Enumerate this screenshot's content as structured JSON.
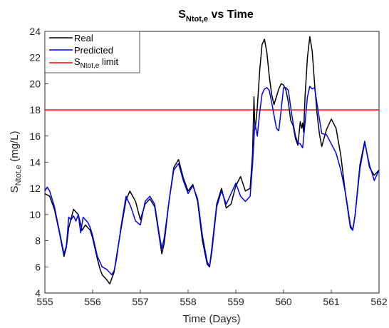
{
  "chart_data": {
    "type": "line",
    "title": {
      "base": "S",
      "sub": "Ntot,e",
      "rest": " vs Time"
    },
    "xlabel": "Time (Days)",
    "ylabel": {
      "base": "S",
      "sub": "Ntot,e",
      "rest": "  (mg/L)"
    },
    "xlim": [
      555,
      562
    ],
    "ylim": [
      4,
      24
    ],
    "xticks": [
      555,
      556,
      557,
      558,
      559,
      560,
      561,
      562
    ],
    "yticks": [
      4,
      6,
      8,
      10,
      12,
      14,
      16,
      18,
      20,
      22,
      24
    ],
    "grid": false,
    "legend_position": "top-left",
    "series": [
      {
        "name": "Real",
        "color": "#000000",
        "x": [
          555.0,
          555.1,
          555.2,
          555.3,
          555.4,
          555.45,
          555.5,
          555.6,
          555.7,
          555.78,
          555.85,
          555.9,
          555.95,
          556.0,
          556.05,
          556.1,
          556.15,
          556.2,
          556.3,
          556.36,
          556.45,
          556.5,
          556.6,
          556.7,
          556.78,
          556.9,
          557.0,
          557.1,
          557.2,
          557.3,
          557.4,
          557.45,
          557.5,
          557.6,
          557.7,
          557.8,
          557.9,
          558.0,
          558.1,
          558.2,
          558.3,
          558.4,
          558.45,
          558.5,
          558.6,
          558.7,
          558.8,
          558.9,
          559.0,
          559.1,
          559.2,
          559.3,
          559.35,
          559.38,
          559.4,
          559.42,
          559.45,
          559.5,
          559.55,
          559.6,
          559.65,
          559.7,
          559.75,
          559.8,
          559.85,
          559.9,
          559.95,
          560.0,
          560.05,
          560.1,
          560.15,
          560.2,
          560.25,
          560.3,
          560.35,
          560.38,
          560.4,
          560.42,
          560.45,
          560.5,
          560.55,
          560.6,
          560.65,
          560.7,
          560.75,
          560.8,
          560.9,
          561.0,
          561.1,
          561.2,
          561.3,
          561.4,
          561.45,
          561.5,
          561.6,
          561.7,
          561.8,
          561.9,
          562.0
        ],
        "values": [
          11.6,
          11.4,
          10.4,
          8.7,
          6.8,
          7.5,
          9.0,
          10.4,
          10.0,
          8.8,
          9.2,
          9.0,
          8.8,
          8.2,
          7.4,
          6.6,
          5.9,
          5.4,
          5.0,
          4.7,
          5.6,
          6.8,
          9.0,
          11.1,
          11.8,
          11.0,
          9.6,
          10.8,
          11.2,
          10.6,
          8.2,
          7.0,
          7.8,
          11.0,
          13.6,
          14.2,
          12.8,
          11.8,
          12.3,
          11.0,
          8.0,
          6.2,
          6.0,
          7.5,
          10.8,
          12.0,
          10.5,
          10.8,
          12.2,
          12.9,
          11.8,
          12.0,
          14.6,
          19.0,
          16.5,
          17.0,
          18.2,
          21.0,
          23.0,
          23.4,
          22.4,
          20.6,
          19.2,
          18.4,
          19.0,
          19.6,
          20.0,
          19.9,
          19.5,
          18.6,
          17.2,
          16.8,
          15.8,
          15.3,
          17.1,
          16.6,
          17.0,
          16.3,
          19.0,
          22.0,
          23.6,
          22.5,
          20.0,
          17.8,
          16.2,
          15.2,
          16.5,
          17.3,
          16.6,
          14.5,
          11.5,
          9.0,
          8.8,
          10.0,
          13.8,
          15.6,
          13.6,
          13.0,
          13.4
        ]
      },
      {
        "name": "Predicted",
        "color": "#0000ff",
        "x": [
          555.0,
          555.05,
          555.1,
          555.2,
          555.3,
          555.4,
          555.45,
          555.5,
          555.55,
          555.6,
          555.65,
          555.7,
          555.75,
          555.8,
          555.85,
          555.9,
          555.95,
          556.0,
          556.05,
          556.1,
          556.2,
          556.3,
          556.4,
          556.45,
          556.5,
          556.6,
          556.7,
          556.8,
          556.9,
          557.0,
          557.1,
          557.2,
          557.3,
          557.4,
          557.45,
          557.5,
          557.6,
          557.7,
          557.8,
          557.9,
          558.0,
          558.1,
          558.2,
          558.3,
          558.4,
          558.45,
          558.5,
          558.6,
          558.7,
          558.8,
          558.9,
          559.0,
          559.1,
          559.2,
          559.3,
          559.35,
          559.4,
          559.45,
          559.5,
          559.55,
          559.6,
          559.65,
          559.7,
          559.75,
          559.8,
          559.85,
          559.9,
          559.95,
          560.0,
          560.05,
          560.1,
          560.15,
          560.2,
          560.25,
          560.3,
          560.35,
          560.4,
          560.45,
          560.5,
          560.55,
          560.6,
          560.65,
          560.7,
          560.8,
          560.9,
          561.0,
          561.1,
          561.2,
          561.3,
          561.4,
          561.45,
          561.5,
          561.6,
          561.7,
          561.8,
          561.9,
          562.0
        ],
        "values": [
          11.8,
          12.1,
          11.8,
          10.6,
          8.8,
          7.0,
          7.6,
          9.8,
          9.6,
          9.9,
          9.5,
          10.0,
          8.6,
          9.8,
          9.6,
          9.4,
          9.0,
          8.4,
          7.6,
          6.8,
          6.0,
          5.8,
          5.4,
          5.7,
          6.6,
          9.2,
          11.4,
          10.6,
          9.5,
          9.2,
          11.0,
          11.4,
          10.8,
          8.4,
          7.4,
          8.2,
          11.0,
          13.4,
          13.9,
          12.6,
          11.6,
          12.2,
          11.2,
          8.4,
          6.4,
          6.0,
          7.2,
          10.6,
          11.8,
          10.8,
          11.6,
          12.4,
          11.4,
          11.0,
          11.4,
          13.8,
          17.0,
          16.0,
          17.8,
          19.2,
          19.6,
          19.7,
          19.5,
          18.6,
          17.6,
          16.6,
          16.4,
          18.0,
          19.7,
          19.7,
          19.5,
          18.2,
          17.0,
          16.0,
          15.5,
          15.4,
          15.1,
          17.0,
          19.0,
          19.8,
          19.6,
          19.7,
          18.5,
          16.2,
          16.1,
          15.4,
          14.7,
          13.4,
          11.6,
          9.2,
          8.8,
          10.0,
          13.5,
          15.5,
          13.8,
          12.6,
          13.4
        ]
      },
      {
        "name_base": "S",
        "name_sub": "Ntot,e",
        "name_rest": " limit",
        "color": "#ff0000",
        "x": [
          555,
          562
        ],
        "values": [
          18,
          18
        ]
      }
    ]
  }
}
